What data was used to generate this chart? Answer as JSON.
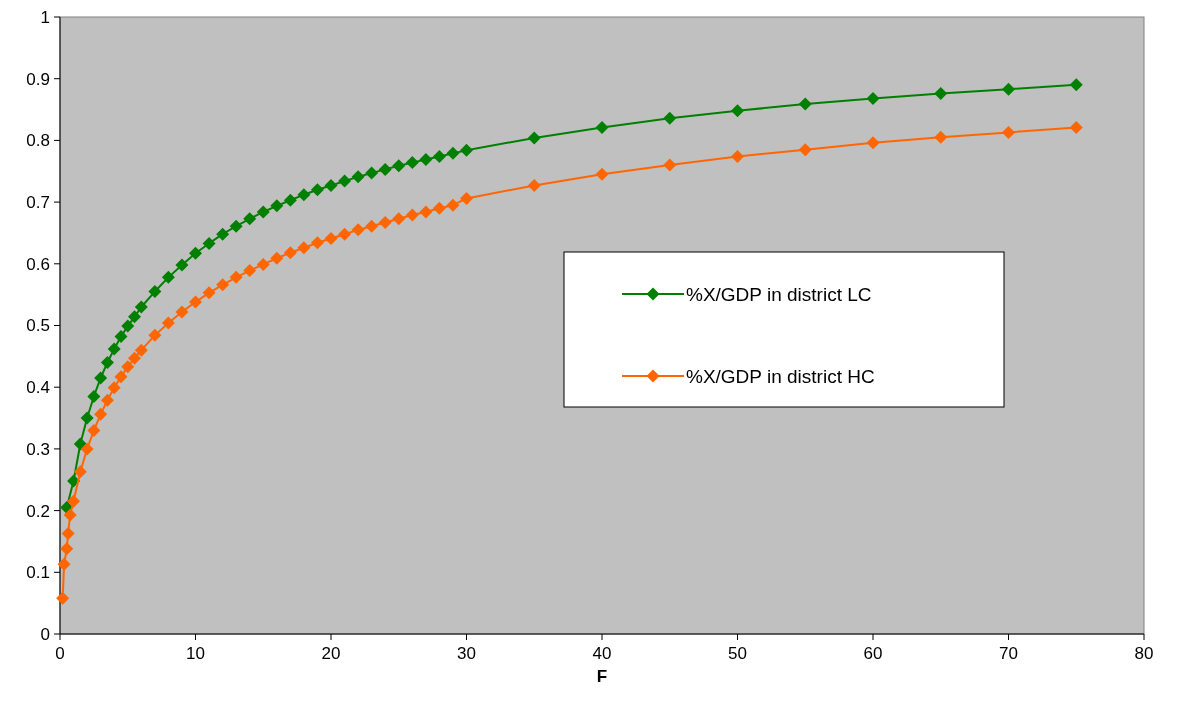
{
  "chart_data": {
    "type": "line",
    "xlabel": "F",
    "xlim": [
      0,
      80
    ],
    "xticks": [
      0,
      10,
      20,
      30,
      40,
      50,
      60,
      70,
      80
    ],
    "ylim": [
      0,
      1
    ],
    "yticks": [
      0,
      0.1,
      0.2,
      0.3,
      0.4,
      0.5,
      0.6,
      0.7,
      0.8,
      0.9,
      1
    ],
    "legend": "right",
    "marker": "diamond",
    "line_style": "solid",
    "series": [
      {
        "name": "%X/GDP in district LC",
        "color": "#008000",
        "x": [
          0.5,
          1,
          1.5,
          2,
          2.5,
          3,
          3.5,
          4,
          4.5,
          5,
          5.5,
          6,
          7,
          8,
          9,
          10,
          11,
          12,
          13,
          14,
          15,
          16,
          17,
          18,
          19,
          20,
          21,
          22,
          23,
          24,
          25,
          26,
          27,
          28,
          29,
          30,
          35,
          40,
          45,
          50,
          55,
          60,
          65,
          70,
          75
        ],
        "values": [
          0.205,
          0.248,
          0.308,
          0.35,
          0.385,
          0.415,
          0.44,
          0.462,
          0.482,
          0.499,
          0.514,
          0.53,
          0.555,
          0.578,
          0.598,
          0.617,
          0.633,
          0.648,
          0.661,
          0.673,
          0.684,
          0.694,
          0.703,
          0.712,
          0.72,
          0.727,
          0.734,
          0.741,
          0.747,
          0.753,
          0.759,
          0.764,
          0.769,
          0.774,
          0.779,
          0.784,
          0.804,
          0.821,
          0.836,
          0.848,
          0.859,
          0.868,
          0.876,
          0.883,
          0.89
        ]
      },
      {
        "name": "%X/GDP in district HC",
        "color": "#ff6600",
        "x": [
          0.2,
          0.3,
          0.5,
          0.6,
          0.75,
          1,
          1.5,
          2,
          2.5,
          3,
          3.5,
          4,
          4.5,
          5,
          5.5,
          6,
          7,
          8,
          9,
          10,
          11,
          12,
          13,
          14,
          15,
          16,
          17,
          18,
          19,
          20,
          21,
          22,
          23,
          24,
          25,
          26,
          27,
          28,
          29,
          30,
          35,
          40,
          45,
          50,
          55,
          60,
          65,
          70,
          75
        ],
        "values": [
          0.058,
          0.113,
          0.138,
          0.163,
          0.193,
          0.215,
          0.263,
          0.3,
          0.33,
          0.356,
          0.379,
          0.399,
          0.417,
          0.433,
          0.447,
          0.46,
          0.484,
          0.504,
          0.522,
          0.538,
          0.553,
          0.566,
          0.578,
          0.589,
          0.599,
          0.609,
          0.618,
          0.626,
          0.634,
          0.641,
          0.648,
          0.655,
          0.661,
          0.667,
          0.673,
          0.679,
          0.684,
          0.69,
          0.695,
          0.706,
          0.727,
          0.745,
          0.76,
          0.774,
          0.785,
          0.796,
          0.805,
          0.813,
          0.821
        ]
      }
    ]
  }
}
